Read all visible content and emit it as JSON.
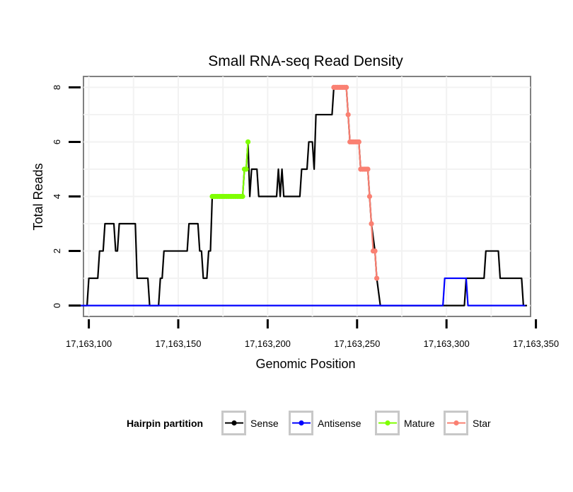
{
  "chart_data": {
    "type": "line",
    "title": "Small RNA-seq Read Density",
    "xlabel": "Genomic Position",
    "ylabel": "Total Reads",
    "xlim": [
      17163097,
      17163347
    ],
    "ylim": [
      -0.4,
      8.4
    ],
    "xticks": [
      17163100,
      17163150,
      17163200,
      17163250,
      17163300,
      17163350
    ],
    "xtick_labels": [
      "17,163,100",
      "17,163,150",
      "17,163,200",
      "17,163,250",
      "17,163,300",
      "17,163,350"
    ],
    "yticks": [
      0,
      2,
      4,
      6,
      8
    ],
    "ytick_labels": [
      "0",
      "2",
      "4",
      "6",
      "8"
    ],
    "grid": true,
    "legend": {
      "title": "Hairpin partition",
      "position": "bottom",
      "entries": [
        "Sense",
        "Antisense",
        "Mature",
        "Star"
      ]
    },
    "colors": {
      "Sense": "#000000",
      "Antisense": "#0000ff",
      "Mature": "#7fff00",
      "Star": "#fa8072"
    },
    "series": [
      {
        "name": "Sense",
        "type": "line",
        "points": [
          [
            17163095,
            0
          ],
          [
            17163099,
            0
          ],
          [
            17163100,
            1
          ],
          [
            17163105,
            1
          ],
          [
            17163106,
            2
          ],
          [
            17163108,
            2
          ],
          [
            17163109,
            3
          ],
          [
            17163114,
            3
          ],
          [
            17163115,
            2
          ],
          [
            17163116,
            2
          ],
          [
            17163117,
            3
          ],
          [
            17163126,
            3
          ],
          [
            17163127,
            1
          ],
          [
            17163133,
            1
          ],
          [
            17163134,
            0
          ],
          [
            17163139,
            0
          ],
          [
            17163140,
            1
          ],
          [
            17163141,
            1
          ],
          [
            17163142,
            2
          ],
          [
            17163155,
            2
          ],
          [
            17163156,
            3
          ],
          [
            17163161,
            3
          ],
          [
            17163162,
            2
          ],
          [
            17163163,
            2
          ],
          [
            17163164,
            1
          ],
          [
            17163166,
            1
          ],
          [
            17163167,
            2
          ],
          [
            17163168,
            2
          ],
          [
            17163169,
            4
          ],
          [
            17163186,
            4
          ],
          [
            17163187,
            5
          ],
          [
            17163188,
            5
          ],
          [
            17163189,
            6
          ],
          [
            17163190,
            4
          ],
          [
            17163191,
            5
          ],
          [
            17163194,
            5
          ],
          [
            17163195,
            4
          ],
          [
            17163205,
            4
          ],
          [
            17163206,
            5
          ],
          [
            17163207,
            4
          ],
          [
            17163208,
            5
          ],
          [
            17163209,
            4
          ],
          [
            17163218,
            4
          ],
          [
            17163219,
            5
          ],
          [
            17163222,
            5
          ],
          [
            17163223,
            6
          ],
          [
            17163225,
            6
          ],
          [
            17163226,
            5
          ],
          [
            17163227,
            7
          ],
          [
            17163236,
            7
          ],
          [
            17163237,
            8
          ],
          [
            17163244,
            8
          ],
          [
            17163245,
            7
          ],
          [
            17163246,
            6
          ],
          [
            17163251,
            6
          ],
          [
            17163252,
            5
          ],
          [
            17163256,
            5
          ],
          [
            17163257,
            4
          ],
          [
            17163258,
            3
          ],
          [
            17163260,
            2
          ],
          [
            17163261,
            1
          ],
          [
            17163263,
            0
          ],
          [
            17163310,
            0
          ],
          [
            17163311,
            1
          ],
          [
            17163321,
            1
          ],
          [
            17163322,
            2
          ],
          [
            17163329,
            2
          ],
          [
            17163330,
            1
          ],
          [
            17163342,
            1
          ],
          [
            17163343,
            0
          ],
          [
            17163345,
            0
          ]
        ]
      },
      {
        "name": "Antisense",
        "type": "line",
        "points": [
          [
            17163095,
            0
          ],
          [
            17163298,
            0
          ],
          [
            17163299,
            1
          ],
          [
            17163311,
            1
          ],
          [
            17163312,
            0
          ],
          [
            17163344,
            0
          ]
        ]
      },
      {
        "name": "Mature",
        "type": "line+points",
        "points": [
          [
            17163169,
            4
          ],
          [
            17163170,
            4
          ],
          [
            17163171,
            4
          ],
          [
            17163172,
            4
          ],
          [
            17163173,
            4
          ],
          [
            17163174,
            4
          ],
          [
            17163175,
            4
          ],
          [
            17163176,
            4
          ],
          [
            17163177,
            4
          ],
          [
            17163178,
            4
          ],
          [
            17163179,
            4
          ],
          [
            17163180,
            4
          ],
          [
            17163181,
            4
          ],
          [
            17163182,
            4
          ],
          [
            17163183,
            4
          ],
          [
            17163184,
            4
          ],
          [
            17163185,
            4
          ],
          [
            17163186,
            4
          ],
          [
            17163187,
            5
          ],
          [
            17163188,
            5
          ],
          [
            17163189,
            6
          ]
        ]
      },
      {
        "name": "Star",
        "type": "line+points",
        "points": [
          [
            17163237,
            8
          ],
          [
            17163238,
            8
          ],
          [
            17163239,
            8
          ],
          [
            17163240,
            8
          ],
          [
            17163241,
            8
          ],
          [
            17163242,
            8
          ],
          [
            17163243,
            8
          ],
          [
            17163244,
            8
          ],
          [
            17163245,
            7
          ],
          [
            17163246,
            6
          ],
          [
            17163247,
            6
          ],
          [
            17163248,
            6
          ],
          [
            17163249,
            6
          ],
          [
            17163250,
            6
          ],
          [
            17163251,
            6
          ],
          [
            17163252,
            5
          ],
          [
            17163253,
            5
          ],
          [
            17163254,
            5
          ],
          [
            17163255,
            5
          ],
          [
            17163256,
            5
          ],
          [
            17163257,
            4
          ],
          [
            17163258,
            3
          ],
          [
            17163259,
            2
          ],
          [
            17163260,
            2
          ],
          [
            17163261,
            1
          ]
        ]
      }
    ]
  }
}
